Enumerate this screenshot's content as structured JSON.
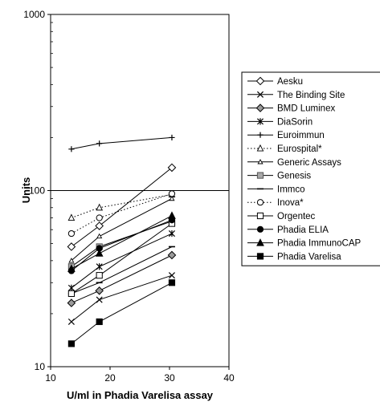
{
  "chart_data": {
    "type": "line",
    "xlabel": "U/ml in Phadia Varelisa assay",
    "ylabel": "Units",
    "xlim": [
      10,
      40
    ],
    "ylim": [
      10,
      1000
    ],
    "y_scale": "log",
    "x_ticks": [
      10,
      20,
      30,
      40
    ],
    "y_ticks": [
      10,
      100,
      1000
    ],
    "y_tick_labels": [
      "10",
      "100",
      "1000"
    ],
    "gridlines_y": [
      100
    ],
    "legend_position": "right",
    "x": [
      13.5,
      18.2,
      30.4
    ],
    "series": [
      {
        "name": "Aesku",
        "marker": "diamond-open",
        "dash": "solid",
        "values": [
          48,
          63,
          135
        ]
      },
      {
        "name": "The Binding Site",
        "marker": "x",
        "dash": "solid",
        "values": [
          18,
          24,
          33
        ]
      },
      {
        "name": "BMD Luminex",
        "marker": "diamond-filled",
        "dash": "solid",
        "values": [
          23,
          27,
          43
        ]
      },
      {
        "name": "DiaSorin",
        "marker": "asterisk",
        "dash": "solid",
        "values": [
          28,
          37,
          57
        ]
      },
      {
        "name": "Euroimmun",
        "marker": "plus",
        "dash": "solid",
        "values": [
          172,
          185,
          200
        ]
      },
      {
        "name": "Eurospital*",
        "marker": "triangle-open",
        "dash": "dotted",
        "values": [
          70,
          80,
          95
        ]
      },
      {
        "name": "Generic Assays",
        "marker": "triangle-small",
        "dash": "solid",
        "values": [
          40,
          55,
          90
        ]
      },
      {
        "name": "Genesis",
        "marker": "square-gray",
        "dash": "solid",
        "values": [
          37,
          48,
          67
        ]
      },
      {
        "name": "Immco",
        "marker": "dash",
        "dash": "solid",
        "values": [
          26,
          30,
          48
        ]
      },
      {
        "name": "Inova*",
        "marker": "circle-open",
        "dash": "dotted",
        "values": [
          57,
          70,
          96
        ]
      },
      {
        "name": "Orgentec",
        "marker": "square-open",
        "dash": "solid",
        "values": [
          26,
          33,
          65
        ]
      },
      {
        "name": "Phadia ELIA",
        "marker": "circle-filled",
        "dash": "solid",
        "values": [
          35,
          47,
          68
        ]
      },
      {
        "name": "Phadia ImmunoCAP",
        "marker": "triangle-filled",
        "dash": "solid",
        "values": [
          36,
          44,
          72
        ]
      },
      {
        "name": "Phadia Varelisa",
        "marker": "square-filled",
        "dash": "solid",
        "values": [
          13.5,
          18,
          30
        ]
      }
    ]
  }
}
